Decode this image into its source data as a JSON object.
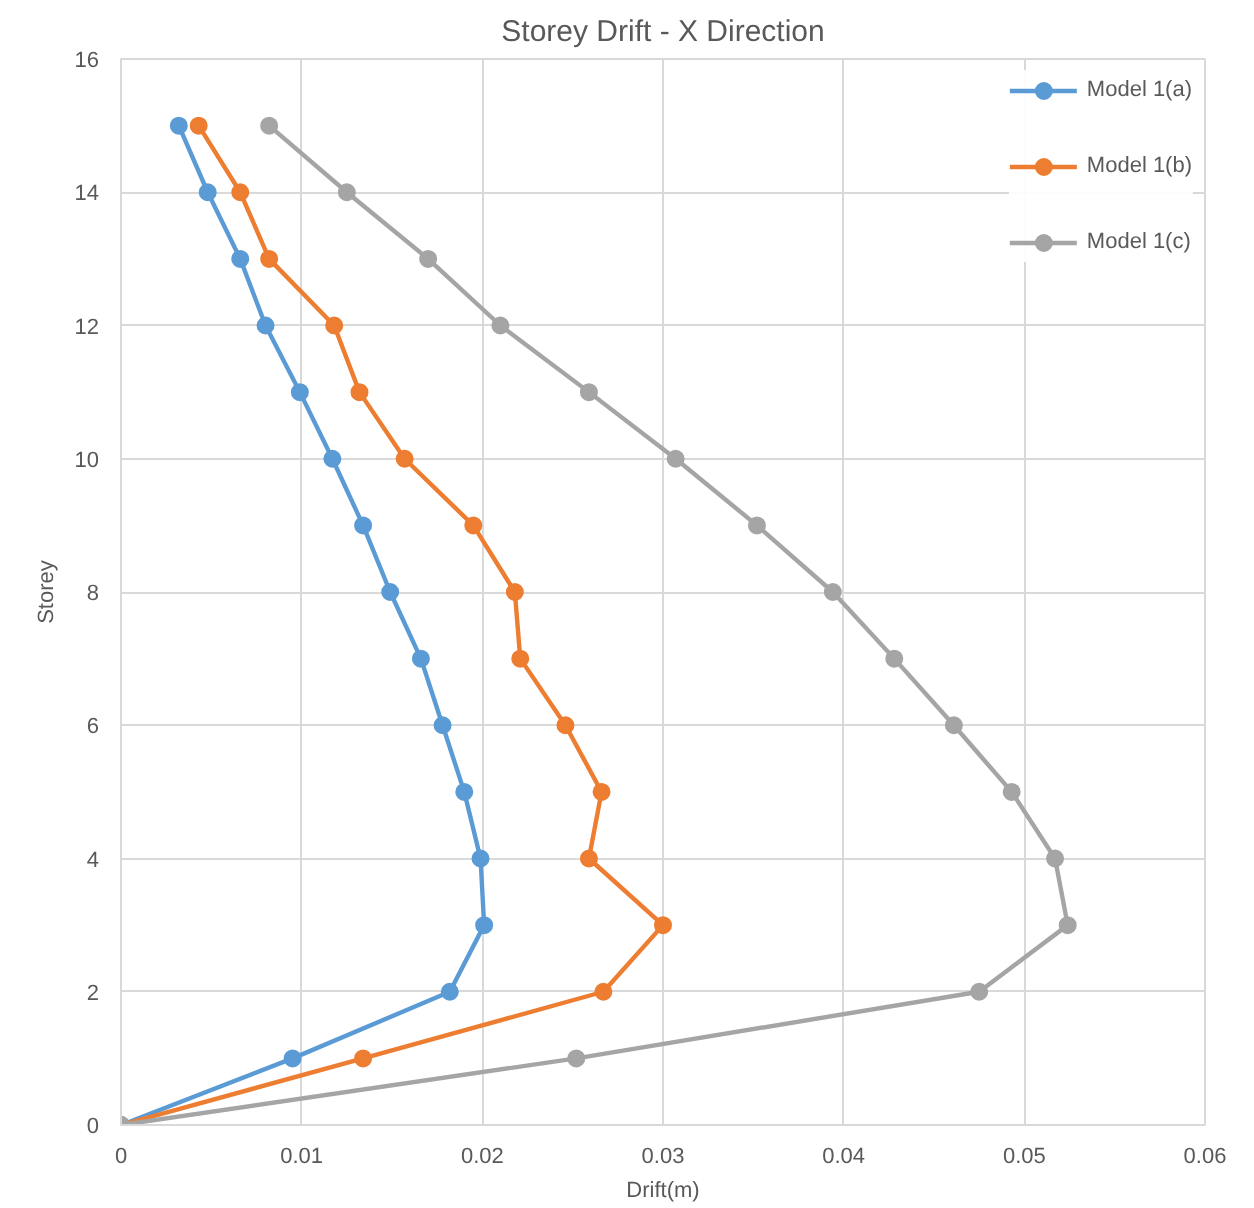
{
  "chart_data": {
    "type": "line",
    "title": "Storey Drift - X Direction",
    "xlabel": "Drift(m)",
    "ylabel": "Storey",
    "xlim": [
      0,
      0.06
    ],
    "xticks": [
      0,
      0.01,
      0.02,
      0.03,
      0.04,
      0.05,
      0.06
    ],
    "ylim": [
      0,
      16
    ],
    "yticks": [
      0,
      2,
      4,
      6,
      8,
      10,
      12,
      14,
      16
    ],
    "grid": true,
    "legend": "top right",
    "marker": "circle",
    "line_style": "solid",
    "series": [
      {
        "name": "Model 1(a)",
        "color": "#5b9bd5",
        "x": [
          0,
          0.0095,
          0.0182,
          0.0201,
          0.0199,
          0.019,
          0.0178,
          0.0166,
          0.0149,
          0.0134,
          0.0117,
          0.0099,
          0.008,
          0.0066,
          0.0048,
          0.0032
        ],
        "values": [
          0,
          1,
          2,
          3,
          4,
          5,
          6,
          7,
          8,
          9,
          10,
          11,
          12,
          13,
          14,
          15
        ]
      },
      {
        "name": "Model 1(b)",
        "color": "#ed7d31",
        "x": [
          0,
          0.0134,
          0.0267,
          0.03,
          0.0259,
          0.0266,
          0.0246,
          0.0221,
          0.0218,
          0.0195,
          0.0157,
          0.0132,
          0.0118,
          0.0082,
          0.0066,
          0.0043
        ],
        "values": [
          0,
          1,
          2,
          3,
          4,
          5,
          6,
          7,
          8,
          9,
          10,
          11,
          12,
          13,
          14,
          15
        ]
      },
      {
        "name": "Model 1(c)",
        "color": "#a5a5a5",
        "x": [
          0,
          0.0252,
          0.0475,
          0.0524,
          0.0517,
          0.0493,
          0.0461,
          0.0428,
          0.0394,
          0.0352,
          0.0307,
          0.0259,
          0.021,
          0.017,
          0.0125,
          0.0082
        ],
        "values": [
          0,
          1,
          2,
          3,
          4,
          5,
          6,
          7,
          8,
          9,
          10,
          11,
          12,
          13,
          14,
          15
        ]
      }
    ]
  }
}
